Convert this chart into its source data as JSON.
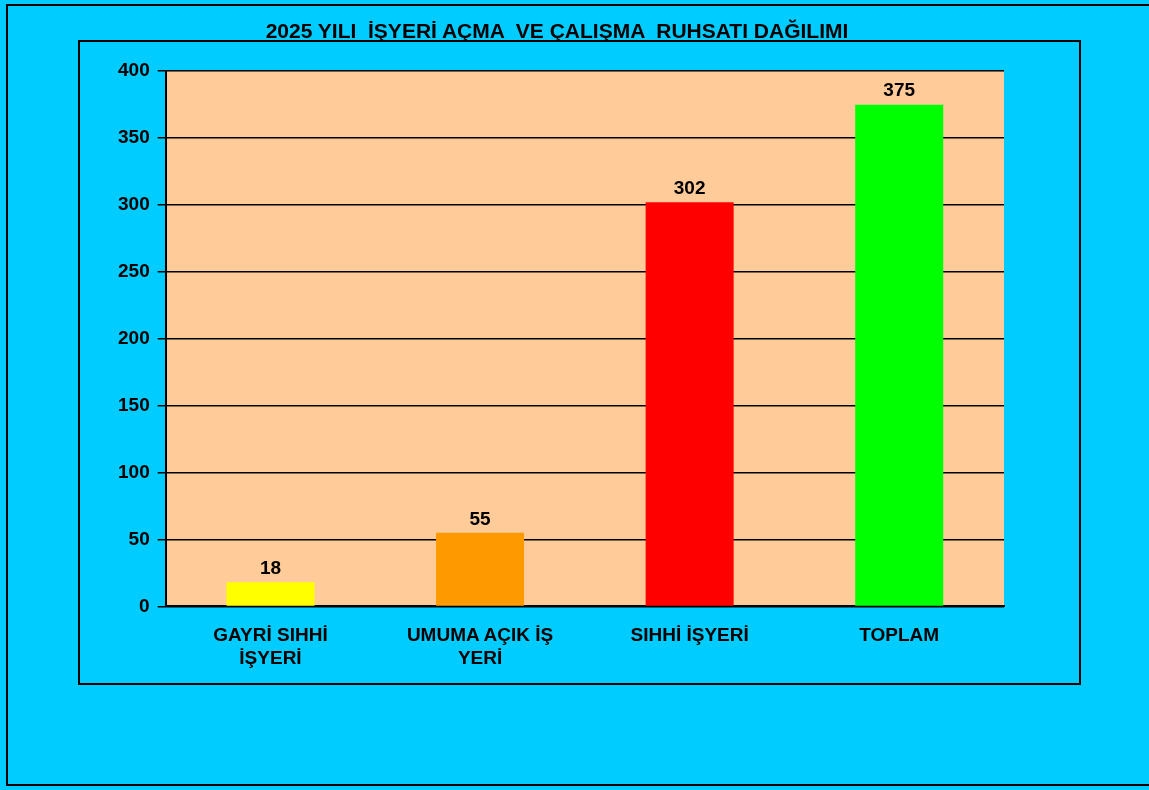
{
  "chart_data": {
    "type": "bar",
    "title": "2025 YILI  İŞYERİ AÇMA  VE ÇALIŞMA  RUHSATI DAĞILIMI",
    "categories": [
      "GAYRİ SIHHİ İŞYERİ",
      "UMUMA AÇIK İŞ YERİ",
      "SIHHİ İŞYERİ",
      "TOPLAM"
    ],
    "values": [
      18,
      55,
      302,
      375
    ],
    "colors": [
      "#ffff00",
      "#ff9900",
      "#ff0000",
      "#00ff00"
    ],
    "ylim": [
      0,
      400
    ],
    "yticks": [
      0,
      50,
      100,
      150,
      200,
      250,
      300,
      350,
      400
    ],
    "grid": "y",
    "legend": false,
    "data_labels": true
  }
}
